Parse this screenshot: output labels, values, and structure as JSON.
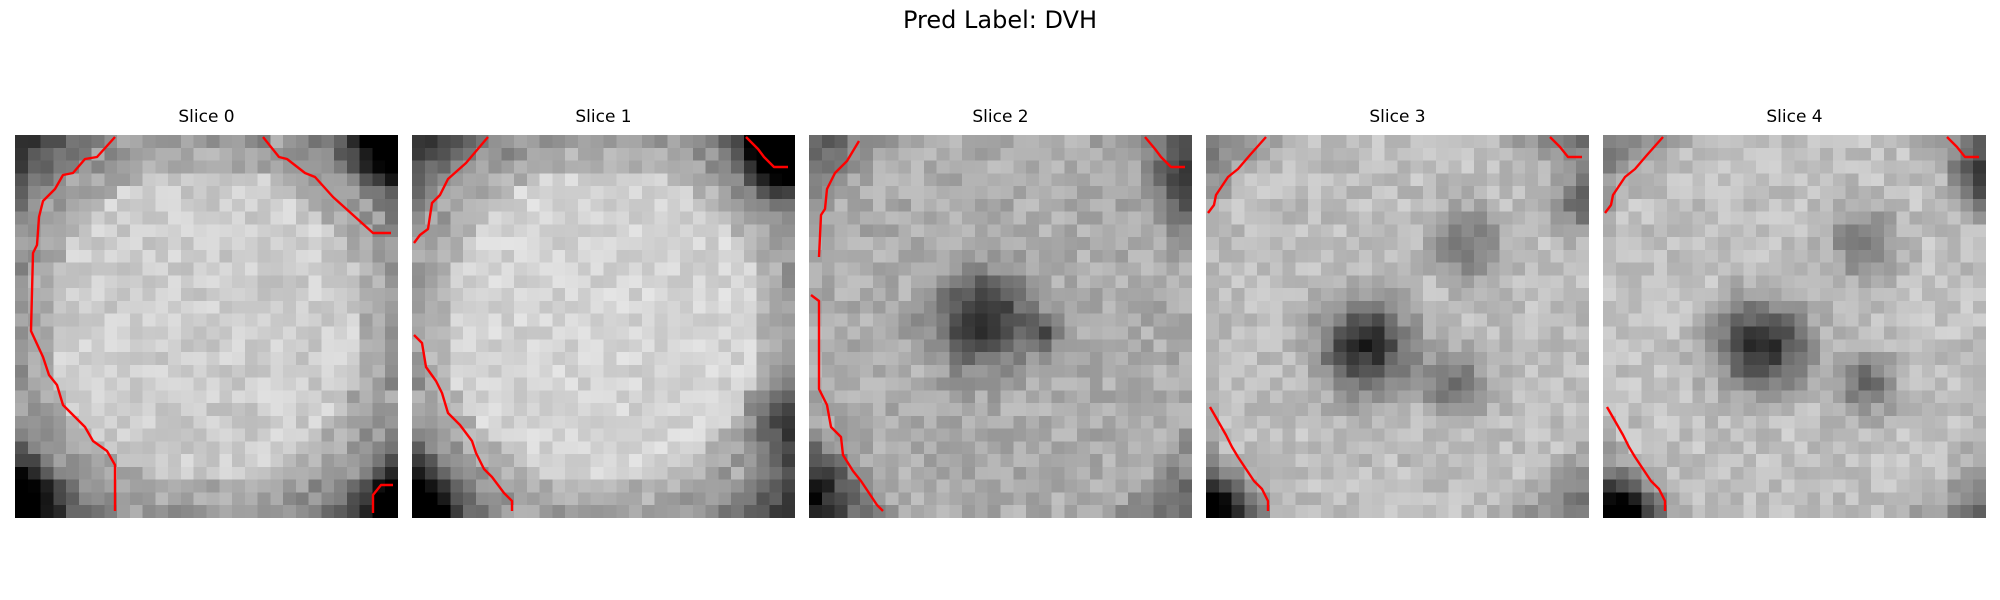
{
  "figure": {
    "title": "Pred Label: DVH",
    "contour_color": "#ff0000",
    "colormap": "gray"
  },
  "panels": [
    {
      "title": "Slice 0"
    },
    {
      "title": "Slice 1"
    },
    {
      "title": "Slice 2"
    },
    {
      "title": "Slice 3"
    },
    {
      "title": "Slice 4"
    }
  ]
}
